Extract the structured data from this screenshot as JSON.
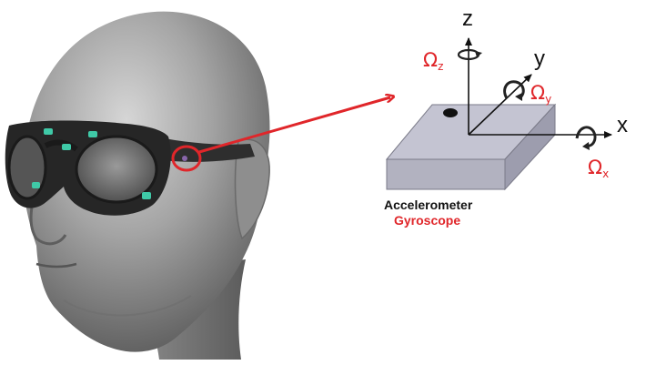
{
  "sensor": {
    "accelerometer_label": "Accelerometer",
    "gyroscope_label": "Gyroscope"
  },
  "axes": {
    "x": "x",
    "y": "y",
    "z": "z"
  },
  "rotation": {
    "symbol": "Ω",
    "x_sub": "x",
    "y_sub": "y",
    "z_sub": "z"
  },
  "colors": {
    "accent_red": "#e0262a",
    "sensor_led": "#3fc9a7",
    "chip_top": "#c4c4d2",
    "chip_front": "#b2b2c0",
    "chip_side": "#9d9dae"
  },
  "icons": {
    "head": "head-with-smart-glasses-illustration",
    "highlight": "highlight-circle-icon",
    "pointer": "arrow-pointer-icon",
    "rotation": "rotation-arrow-icon"
  }
}
